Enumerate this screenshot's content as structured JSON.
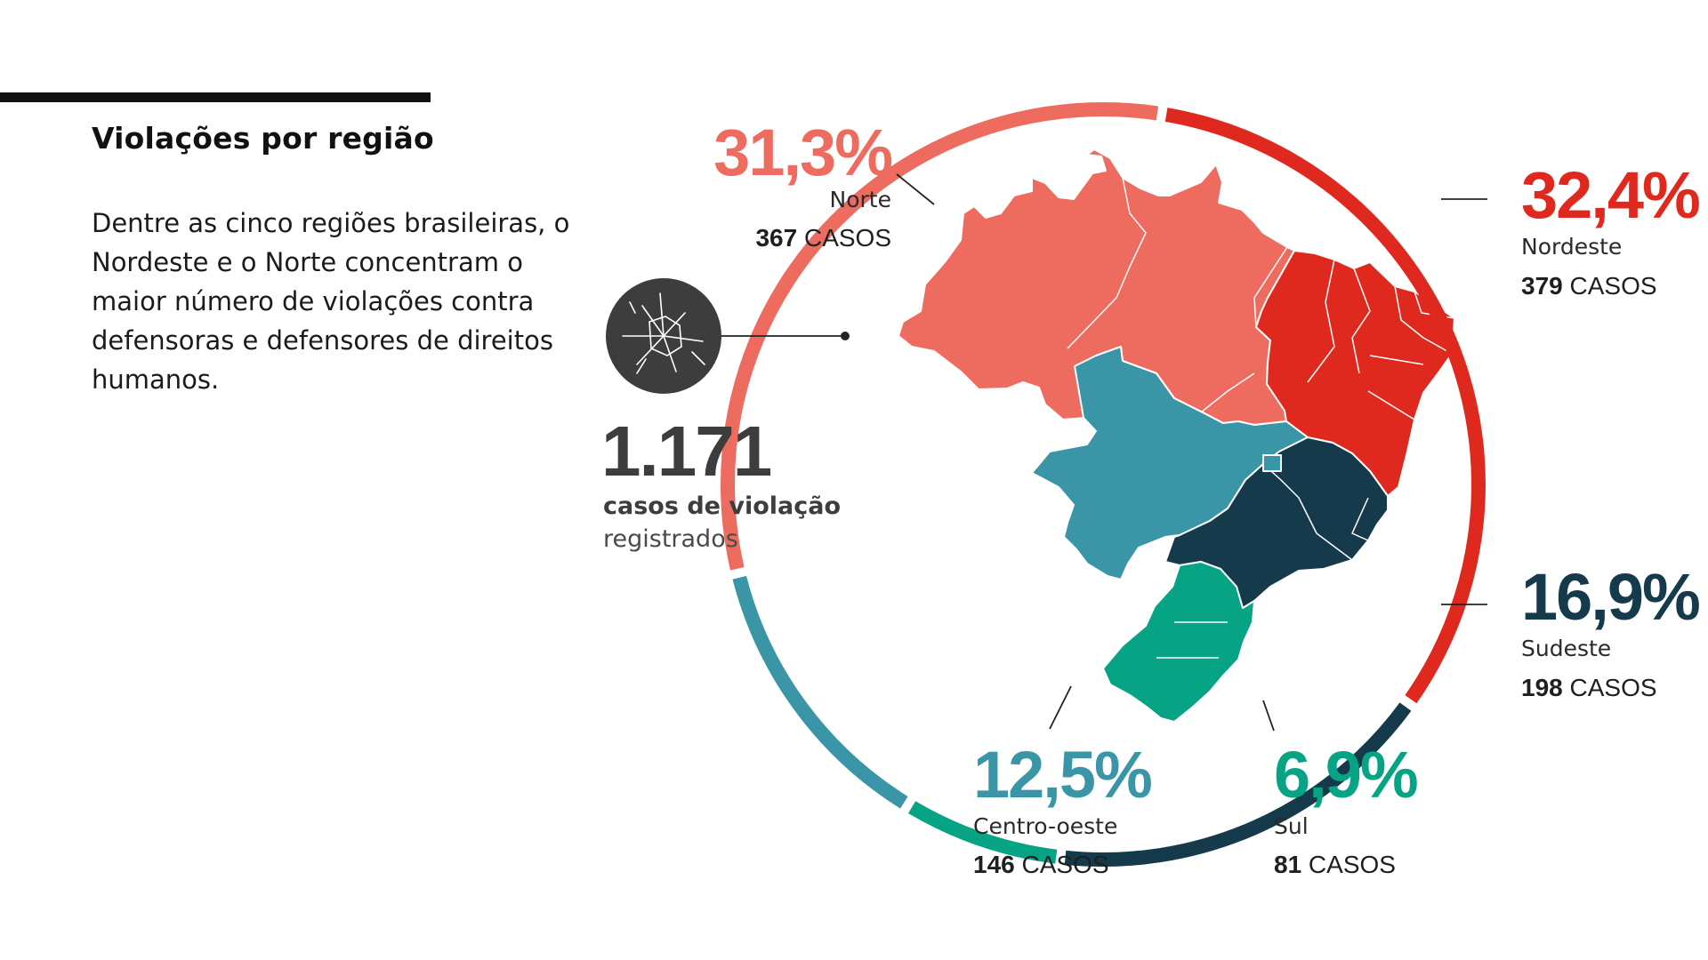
{
  "title": "Violações por região",
  "intro": "Dentre as cinco regiões brasileiras, o Nordeste e o Norte concentram o maior número de violações contra defensoras e defensores de direitos humanos.",
  "total": {
    "value": "1.171",
    "line1": "casos de violação",
    "line2": "registrados",
    "icon": "cracked-glass-icon"
  },
  "cases_suffix": "CASOS",
  "chart_data": {
    "type": "pie",
    "style": "ring around map of Brazil",
    "title": "Violações por região",
    "slices": [
      {
        "label": "Nordeste",
        "percent": "32,4%",
        "percent_value": 32.4,
        "cases": 379,
        "cases_label": "379",
        "color": "#e0291e"
      },
      {
        "label": "Sudeste",
        "percent": "16,9%",
        "percent_value": 16.9,
        "cases": 198,
        "cases_label": "198",
        "color": "#143a4c"
      },
      {
        "label": "Sul",
        "percent": "6,9%",
        "percent_value": 6.9,
        "cases": 81,
        "cases_label": "81",
        "color": "#07a385"
      },
      {
        "label": "Centro-oeste",
        "percent": "12,5%",
        "percent_value": 12.5,
        "cases": 146,
        "cases_label": "146",
        "color": "#3a95a6"
      },
      {
        "label": "Norte",
        "percent": "31,3%",
        "percent_value": 31.3,
        "cases": 367,
        "cases_label": "367",
        "color": "#ee6b5f"
      }
    ]
  }
}
